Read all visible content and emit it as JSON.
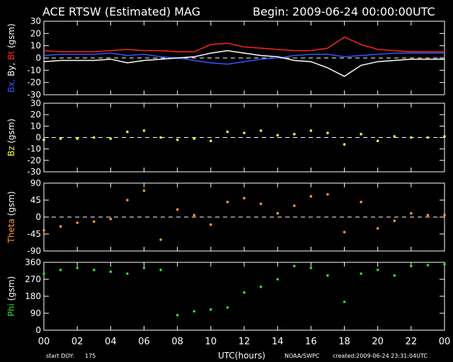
{
  "header": {
    "title": "ACE RTSW (Estimated) MAG",
    "begin": "Begin: 2009-06-24 00:00:00UTC"
  },
  "footer": {
    "doy_label": "start DOY:",
    "doy_value": "175",
    "xlabel": "UTC(hours)",
    "source": "NOAA/SWPC",
    "created": "created:2009-06-24 23:31:04UTC"
  },
  "colors": {
    "bx": "#3355ff",
    "by": "#ffffff",
    "bt": "#ff2222",
    "bz": "#ffff33",
    "theta": "#ff9933",
    "phi": "#33dd33",
    "axis": "#ffffff"
  },
  "chart_data": [
    {
      "type": "line",
      "panel": "mag",
      "ylabel_parts": [
        {
          "text": "Bx,",
          "color": "bx"
        },
        {
          "text": " By,",
          "color": "by"
        },
        {
          "text": " Bt",
          "color": "bt"
        },
        {
          "text": " (gsm)",
          "color": "by"
        }
      ],
      "ylim": [
        -30,
        30
      ],
      "yticks": [
        "30",
        "20",
        "10",
        "0",
        "-10",
        "-20",
        "-30"
      ],
      "ytick_values": [
        30,
        20,
        10,
        0,
        -10,
        -20,
        -30
      ],
      "x": [
        0,
        1,
        2,
        3,
        4,
        5,
        6,
        7,
        8,
        9,
        10,
        11,
        12,
        13,
        14,
        15,
        16,
        17,
        18,
        19,
        20,
        21,
        22,
        23,
        24
      ],
      "series": [
        {
          "name": "Bt",
          "color": "bt",
          "values": [
            6,
            5,
            5,
            5,
            6,
            7,
            6,
            6,
            5,
            5,
            11,
            12,
            9,
            8,
            7,
            6,
            6,
            8,
            17,
            11,
            7,
            6,
            5,
            5,
            5
          ]
        },
        {
          "name": "Bx",
          "color": "bx",
          "values": [
            2,
            3,
            3,
            3,
            4,
            2,
            3,
            1,
            0,
            -2,
            -4,
            -5,
            -3,
            -1,
            0,
            2,
            3,
            3,
            1,
            2,
            3,
            4,
            4,
            4,
            4
          ]
        },
        {
          "name": "By",
          "color": "by",
          "values": [
            -3,
            -2,
            -2,
            -2,
            -1,
            -4,
            -2,
            -1,
            0,
            1,
            4,
            6,
            4,
            2,
            1,
            -2,
            -3,
            -8,
            -15,
            -6,
            -3,
            -2,
            -1,
            -1,
            -1
          ]
        }
      ]
    },
    {
      "type": "scatter",
      "panel": "bz",
      "ylabel_parts": [
        {
          "text": "Bz",
          "color": "bz"
        },
        {
          "text": " (gsm)",
          "color": "by"
        }
      ],
      "ylim": [
        -30,
        30
      ],
      "yticks": [
        "30",
        "20",
        "10",
        "0",
        "-10",
        "-20",
        "-30"
      ],
      "ytick_values": [
        30,
        20,
        10,
        0,
        -10,
        -20,
        -30
      ],
      "x": [
        0,
        1,
        2,
        3,
        4,
        5,
        6,
        7,
        8,
        9,
        10,
        11,
        12,
        13,
        14,
        15,
        16,
        17,
        18,
        19,
        20,
        21,
        22,
        23,
        24
      ],
      "series": [
        {
          "name": "Bz",
          "color": "bz",
          "values": [
            -2,
            -1,
            -1,
            0,
            -1,
            5,
            6,
            0,
            -2,
            -1,
            -3,
            5,
            4,
            6,
            2,
            3,
            6,
            4,
            -6,
            3,
            -3,
            1,
            0,
            0,
            1
          ]
        }
      ]
    },
    {
      "type": "scatter",
      "panel": "theta",
      "ylabel_parts": [
        {
          "text": "Theta",
          "color": "theta"
        },
        {
          "text": " (gsm)",
          "color": "by"
        }
      ],
      "ylim": [
        -90,
        90
      ],
      "yticks": [
        "90",
        "45",
        "0",
        "-45",
        "-90"
      ],
      "ytick_values": [
        90,
        45,
        0,
        -45,
        -90
      ],
      "x": [
        0,
        1,
        2,
        3,
        4,
        5,
        6,
        7,
        8,
        9,
        10,
        11,
        12,
        13,
        14,
        15,
        16,
        17,
        18,
        19,
        20,
        21,
        22,
        23,
        24
      ],
      "series": [
        {
          "name": "Theta",
          "color": "theta",
          "values": [
            -35,
            -25,
            -15,
            -12,
            -5,
            45,
            70,
            -60,
            20,
            5,
            -20,
            40,
            50,
            35,
            10,
            30,
            55,
            60,
            -40,
            40,
            -30,
            -10,
            10,
            5,
            5
          ]
        }
      ]
    },
    {
      "type": "scatter",
      "panel": "phi",
      "ylabel_parts": [
        {
          "text": "Phi",
          "color": "phi"
        },
        {
          "text": " (gsm)",
          "color": "by"
        }
      ],
      "ylim": [
        0,
        360
      ],
      "yticks": [
        "360",
        "270",
        "180",
        "90",
        "0"
      ],
      "ytick_values": [
        360,
        270,
        180,
        90,
        0
      ],
      "x": [
        0,
        1,
        2,
        3,
        4,
        5,
        6,
        7,
        8,
        9,
        10,
        11,
        12,
        13,
        14,
        15,
        16,
        17,
        18,
        19,
        20,
        21,
        22,
        23,
        24
      ],
      "series": [
        {
          "name": "Phi",
          "color": "phi",
          "values": [
            300,
            320,
            330,
            320,
            310,
            300,
            330,
            320,
            80,
            100,
            110,
            120,
            200,
            230,
            270,
            340,
            330,
            290,
            150,
            300,
            320,
            290,
            340,
            345,
            350
          ]
        }
      ]
    }
  ],
  "xaxis": {
    "xlim": [
      0,
      24
    ],
    "ticks": [
      "00",
      "02",
      "04",
      "06",
      "08",
      "10",
      "12",
      "14",
      "16",
      "18",
      "20",
      "22",
      "00"
    ],
    "tick_values": [
      0,
      2,
      4,
      6,
      8,
      10,
      12,
      14,
      16,
      18,
      20,
      22,
      24
    ]
  }
}
